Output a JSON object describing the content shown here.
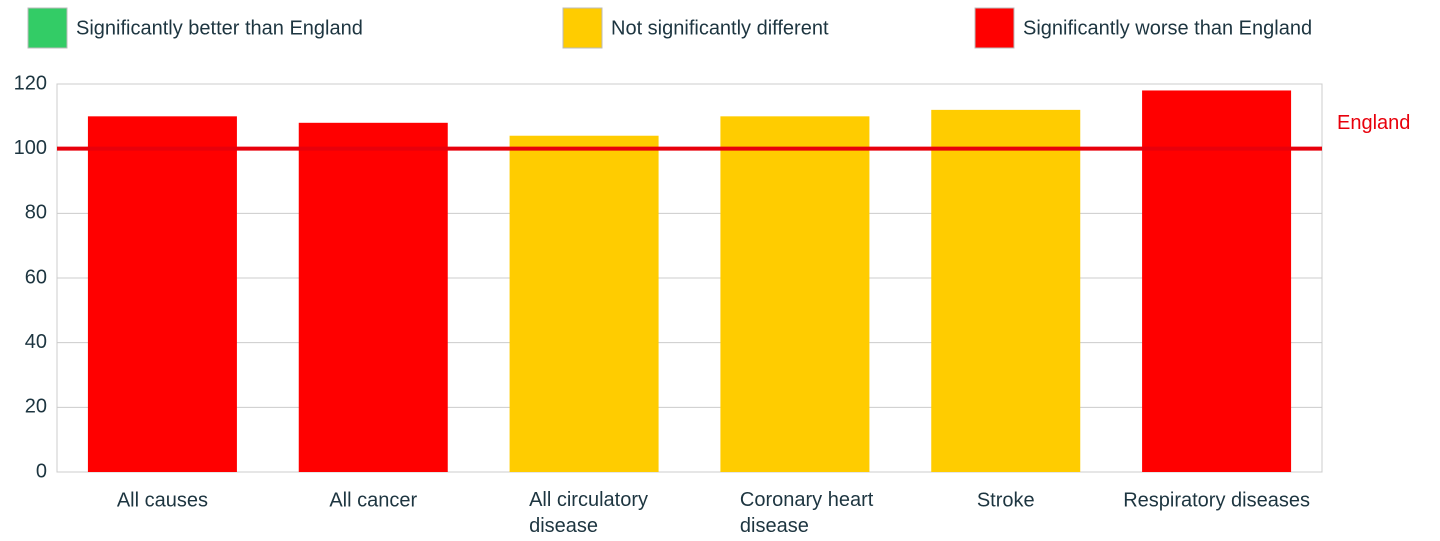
{
  "chart_data": {
    "type": "bar",
    "legend": [
      {
        "name": "Significantly better than England",
        "color": "#33cc66"
      },
      {
        "name": "Not significantly different",
        "color": "#ffcc00"
      },
      {
        "name": "Significantly worse than England",
        "color": "#ff0000"
      }
    ],
    "categories": [
      "All causes",
      "All cancer",
      "All circulatory disease",
      "Coronary heart disease",
      "Stroke",
      "Respiratory diseases"
    ],
    "values": [
      110,
      108,
      104,
      110,
      112,
      118
    ],
    "colors": [
      "#ff0000",
      "#ff0000",
      "#ffcc00",
      "#ffcc00",
      "#ffcc00",
      "#ff0000"
    ],
    "reference_line": {
      "value": 100,
      "label": "England",
      "color": "#e8000b"
    },
    "ylim": [
      0,
      120
    ],
    "yticks": [
      0,
      20,
      40,
      60,
      80,
      100,
      120
    ],
    "grid": true
  }
}
